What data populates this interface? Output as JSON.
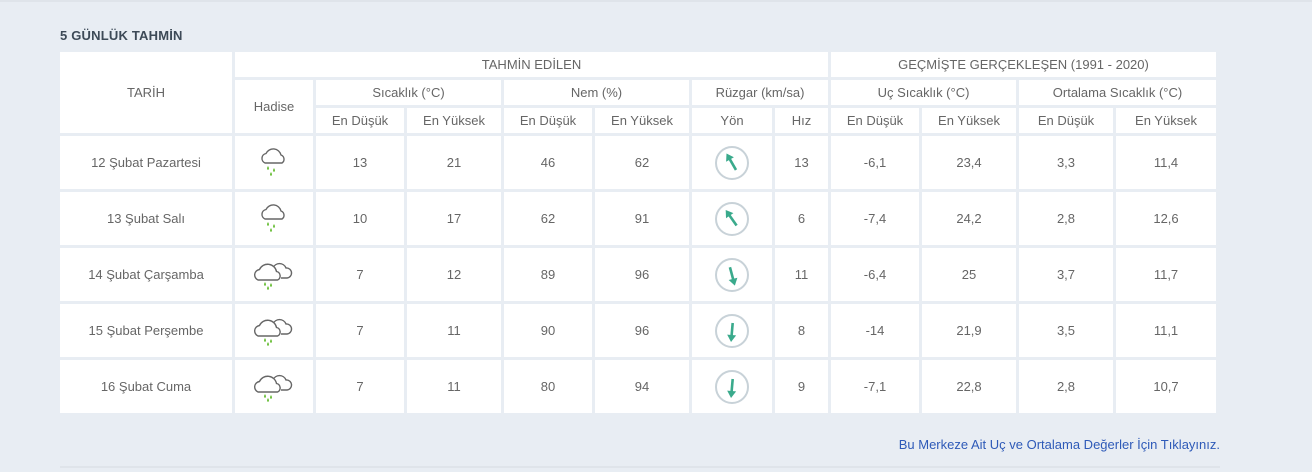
{
  "section_title": "5 GÜNLÜK TAHMİN",
  "headers": {
    "date": "TARİH",
    "event": "Hadise",
    "forecast": "TAHMİN EDİLEN",
    "past": "GEÇMİŞTE GERÇEKLEŞEN (1991 - 2020)",
    "temp": "Sıcaklık (°C)",
    "humidity": "Nem (%)",
    "wind": "Rüzgar (km/sa)",
    "extreme_temp": "Uç Sıcaklık (°C)",
    "avg_temp": "Ortalama Sıcaklık (°C)",
    "min": "En Düşük",
    "max": "En Yüksek",
    "dir": "Yön",
    "speed": "Hız"
  },
  "rows": [
    {
      "date": "12 Şubat Pazartesi",
      "icon": "rain-cloud-icon",
      "temp_min": "13",
      "temp_max": "21",
      "hum_min": "46",
      "hum_max": "62",
      "wind_dir_deg": -30,
      "wind_speed": "13",
      "ext_min": "-6,1",
      "ext_max": "23,4",
      "avg_min": "3,3",
      "avg_max": "11,4"
    },
    {
      "date": "13 Şubat Salı",
      "icon": "rain-cloud-icon",
      "temp_min": "10",
      "temp_max": "17",
      "hum_min": "62",
      "hum_max": "91",
      "wind_dir_deg": -35,
      "wind_speed": "6",
      "ext_min": "-7,4",
      "ext_max": "24,2",
      "avg_min": "2,8",
      "avg_max": "12,6"
    },
    {
      "date": "14 Şubat Çarşamba",
      "icon": "rain-clouds-icon",
      "temp_min": "7",
      "temp_max": "12",
      "hum_min": "89",
      "hum_max": "96",
      "wind_dir_deg": 165,
      "wind_speed": "11",
      "ext_min": "-6,4",
      "ext_max": "25",
      "avg_min": "3,7",
      "avg_max": "11,7"
    },
    {
      "date": "15 Şubat Perşembe",
      "icon": "rain-clouds-icon",
      "temp_min": "7",
      "temp_max": "11",
      "hum_min": "90",
      "hum_max": "96",
      "wind_dir_deg": 185,
      "wind_speed": "8",
      "ext_min": "-14",
      "ext_max": "21,9",
      "avg_min": "3,5",
      "avg_max": "11,1"
    },
    {
      "date": "16 Şubat Cuma",
      "icon": "rain-clouds-icon",
      "temp_min": "7",
      "temp_max": "11",
      "hum_min": "80",
      "hum_max": "94",
      "wind_dir_deg": 185,
      "wind_speed": "9",
      "ext_min": "-7,1",
      "ext_max": "22,8",
      "avg_min": "2,8",
      "avg_max": "10,7"
    }
  ],
  "link_text": "Bu Merkeze Ait Uç ve Ortalama Değerler İçin Tıklayınız.",
  "colors": {
    "min": "#2b8fb8",
    "max": "#e04a5e",
    "hum_min": "#e8a13a",
    "hum_max": "#7b6fb5",
    "wind": "#3aaa8c"
  }
}
